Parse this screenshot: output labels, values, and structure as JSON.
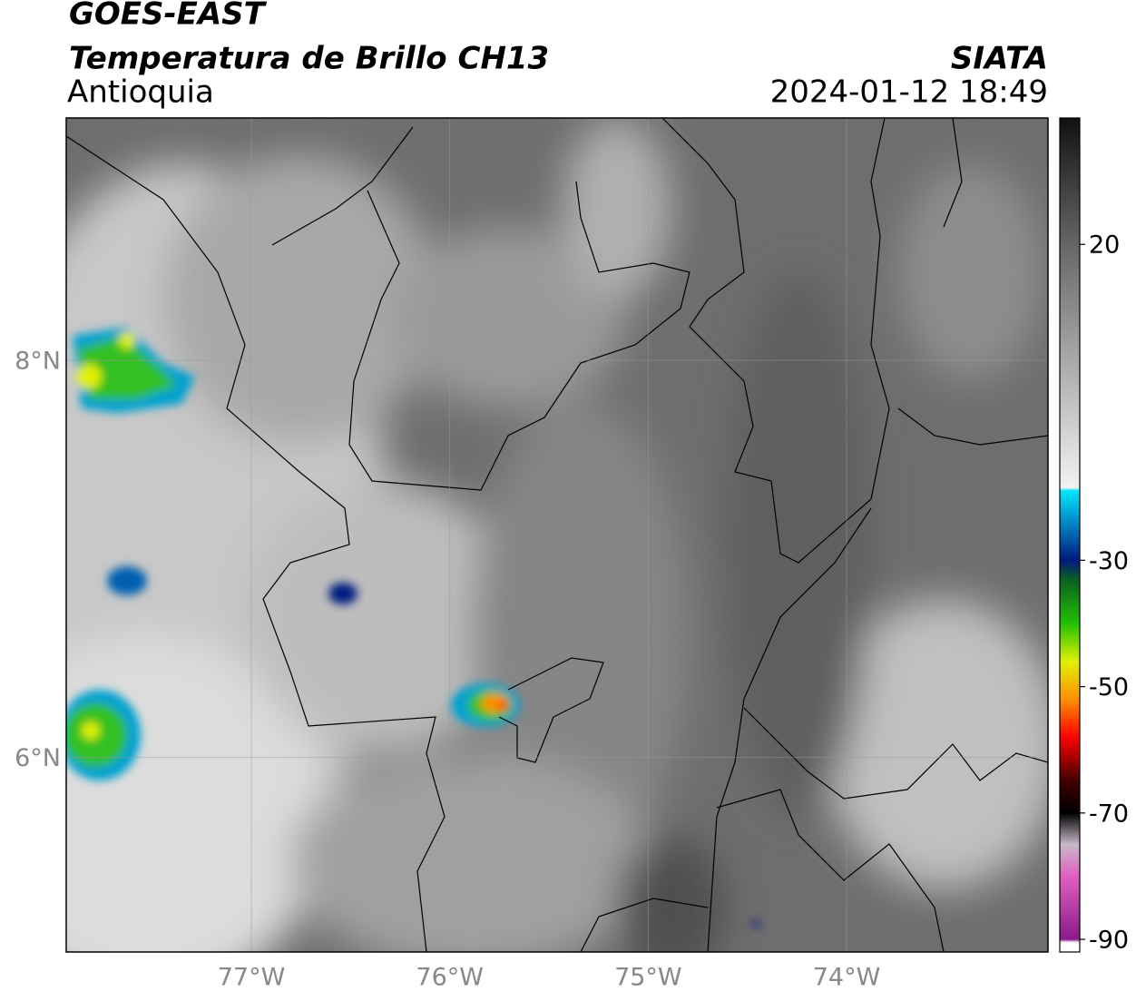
{
  "header": {
    "title": "GOES-EAST",
    "subtitle": "Temperatura de Brillo CH13",
    "region": "Antioquia",
    "source": "SIATA",
    "timestamp": "2024-01-12 18:49"
  },
  "map": {
    "lonlim": [
      -77.933,
      -72.985
    ],
    "latlim": [
      5.02,
      9.22
    ],
    "lonticks": [
      {
        "value": -77,
        "label": "77°W"
      },
      {
        "value": -76,
        "label": "76°W"
      },
      {
        "value": -75,
        "label": "75°W"
      },
      {
        "value": -74,
        "label": "74°W"
      }
    ],
    "latticks": [
      {
        "value": 8,
        "label": "8°N"
      },
      {
        "value": 6,
        "label": "6°N"
      }
    ],
    "grid": true
  },
  "colorbar": {
    "lim": [
      -92,
      40
    ],
    "ticks": [
      20,
      -30,
      -50,
      -70,
      -90
    ],
    "colormap": [
      {
        "value": 40,
        "color": "#111111"
      },
      {
        "value": 20,
        "color": "#666666"
      },
      {
        "value": -18.5,
        "color": "#f2f2f2"
      },
      {
        "value": -19,
        "color": "#00e5ff"
      },
      {
        "value": -30,
        "color": "#001a80"
      },
      {
        "value": -33,
        "color": "#0a6020"
      },
      {
        "value": -40,
        "color": "#22c000"
      },
      {
        "value": -46,
        "color": "#e0f000"
      },
      {
        "value": -52,
        "color": "#ff9000"
      },
      {
        "value": -58,
        "color": "#ff0000"
      },
      {
        "value": -65,
        "color": "#400000"
      },
      {
        "value": -70,
        "color": "#000000"
      },
      {
        "value": -75,
        "color": "#c8b8c8"
      },
      {
        "value": -80,
        "color": "#e060c0"
      },
      {
        "value": -90,
        "color": "#8a1a8a"
      },
      {
        "value": -90.5,
        "color": "#ffffff"
      }
    ]
  }
}
